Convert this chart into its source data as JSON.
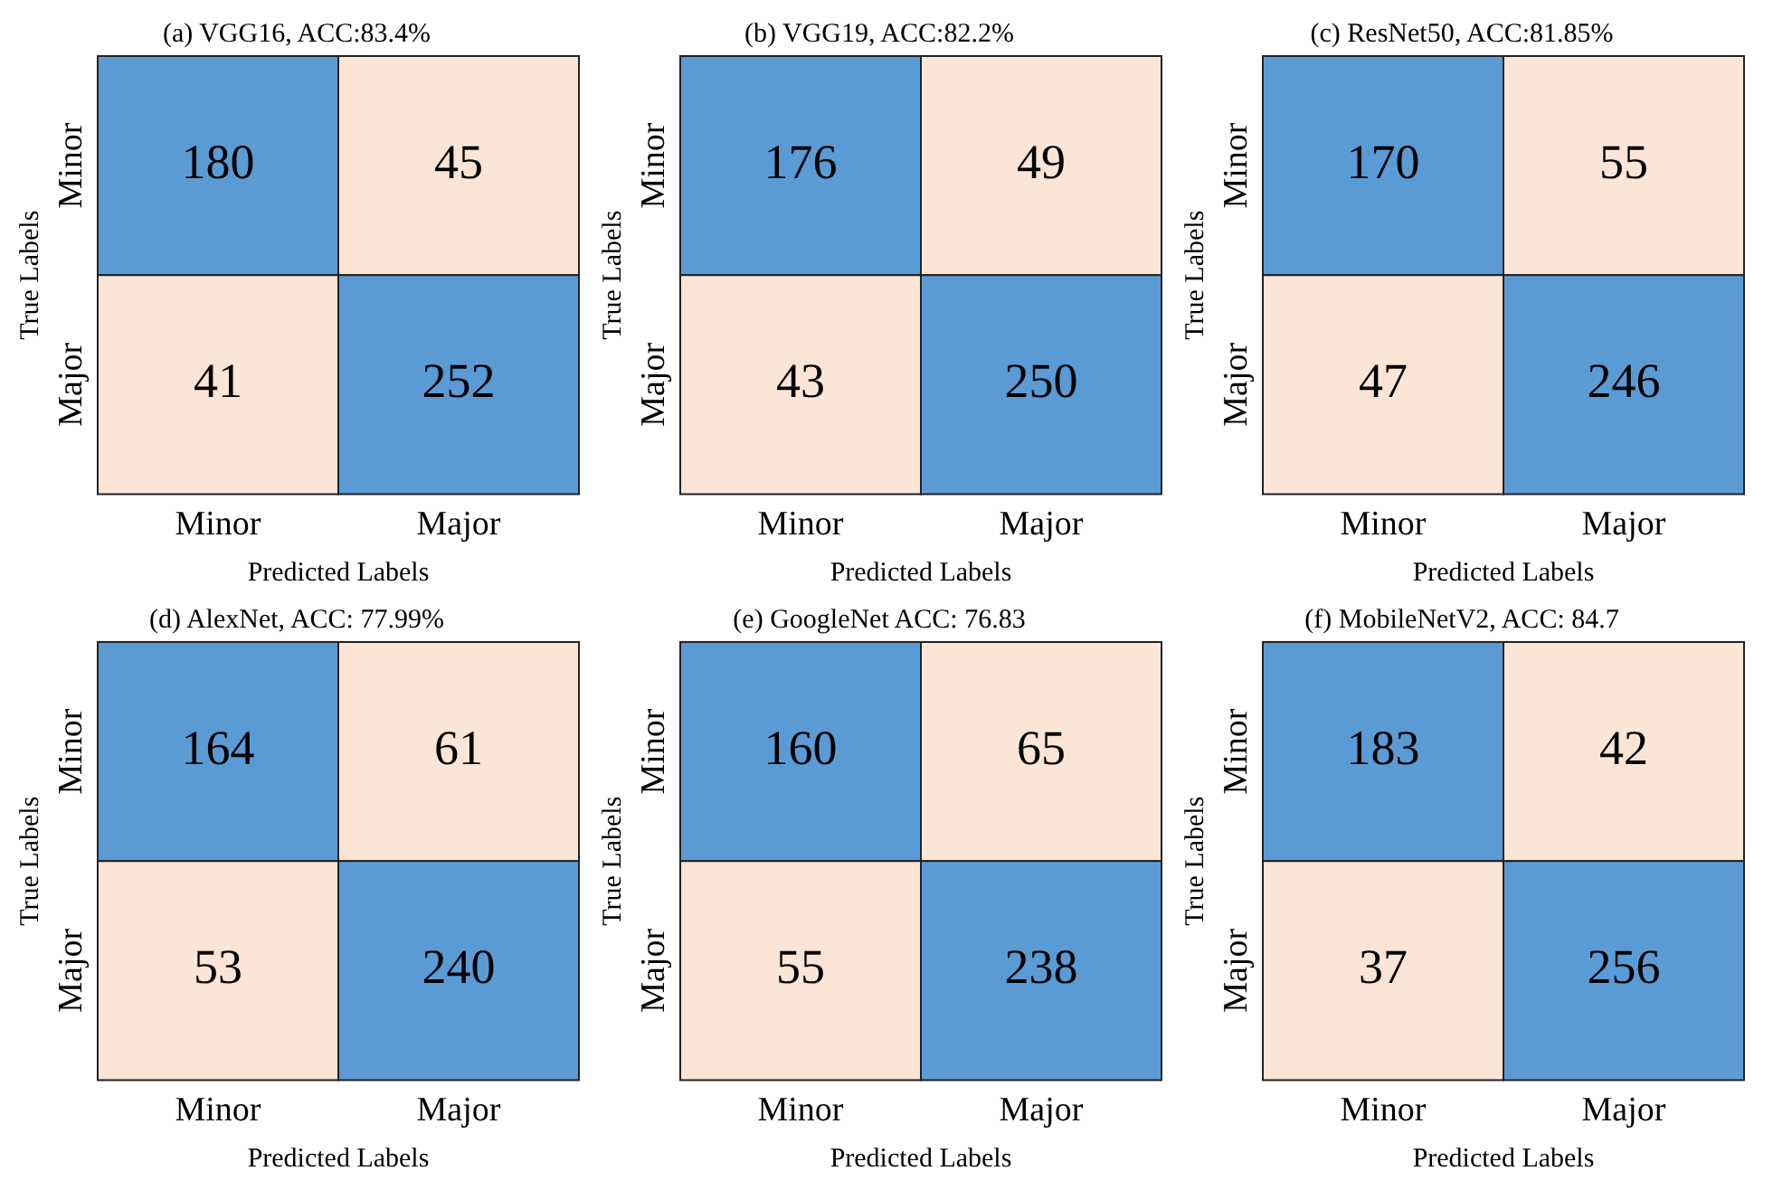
{
  "chart_data": [
    {
      "type": "heatmap",
      "title": "(a) VGG16, ACC:83.4%",
      "xlabel": "Predicted Labels",
      "ylabel": "True Labels",
      "categories": [
        "Minor",
        "Major"
      ],
      "y_categories": [
        "Minor",
        "Major"
      ],
      "cells": [
        [
          180,
          45
        ],
        [
          41,
          252
        ]
      ],
      "colors": [
        "#fbe5d6",
        "#5b9bd5"
      ],
      "data_labels": true
    },
    {
      "type": "heatmap",
      "title": "(b) VGG19, ACC:82.2%",
      "xlabel": "Predicted Labels",
      "ylabel": "True Labels",
      "categories": [
        "Minor",
        "Major"
      ],
      "y_categories": [
        "Minor",
        "Major"
      ],
      "cells": [
        [
          176,
          49
        ],
        [
          43,
          250
        ]
      ],
      "colors": [
        "#fbe5d6",
        "#5b9bd5"
      ],
      "data_labels": true
    },
    {
      "type": "heatmap",
      "title": "(c) ResNet50, ACC:81.85%",
      "xlabel": "Predicted Labels",
      "ylabel": "True Labels",
      "categories": [
        "Minor",
        "Major"
      ],
      "y_categories": [
        "Minor",
        "Major"
      ],
      "cells": [
        [
          170,
          55
        ],
        [
          47,
          246
        ]
      ],
      "colors": [
        "#fbe5d6",
        "#5b9bd5"
      ],
      "data_labels": true
    },
    {
      "type": "heatmap",
      "title": "(d) AlexNet, ACC: 77.99%",
      "xlabel": "Predicted Labels",
      "ylabel": "True Labels",
      "categories": [
        "Minor",
        "Major"
      ],
      "y_categories": [
        "Minor",
        "Major"
      ],
      "cells": [
        [
          164,
          61
        ],
        [
          53,
          240
        ]
      ],
      "colors": [
        "#fbe5d6",
        "#5b9bd5"
      ],
      "data_labels": true
    },
    {
      "type": "heatmap",
      "title": "(e) GoogleNet ACC: 76.83",
      "xlabel": "Predicted Labels",
      "ylabel": "True Labels",
      "categories": [
        "Minor",
        "Major"
      ],
      "y_categories": [
        "Minor",
        "Major"
      ],
      "cells": [
        [
          160,
          65
        ],
        [
          55,
          238
        ]
      ],
      "colors": [
        "#fbe5d6",
        "#5b9bd5"
      ],
      "data_labels": true
    },
    {
      "type": "heatmap",
      "title": "(f) MobileNetV2, ACC: 84.7",
      "xlabel": "Predicted Labels",
      "ylabel": "True Labels",
      "categories": [
        "Minor",
        "Major"
      ],
      "y_categories": [
        "Minor",
        "Major"
      ],
      "cells": [
        [
          183,
          42
        ],
        [
          37,
          256
        ]
      ],
      "colors": [
        "#fbe5d6",
        "#5b9bd5"
      ],
      "data_labels": true
    }
  ]
}
